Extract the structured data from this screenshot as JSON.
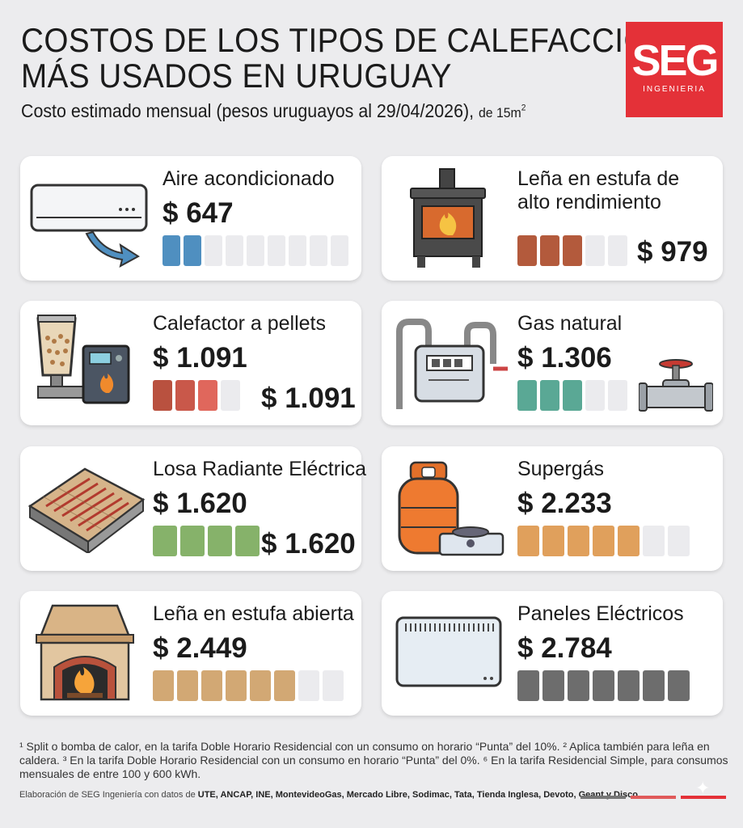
{
  "header": {
    "title_line1": "COSTOS DE LOS TIPOS DE CALEFACCIÓN",
    "title_line2": "MÁS USADOS EN URUGUAY",
    "subtitle_main": "Costo estimado mensual (pesos uruguayos al 29/04/2026),",
    "subtitle_small": "de 15m",
    "subtitle_sup": "2"
  },
  "logo": {
    "mark": "SEG",
    "sub": "INGENIERIA",
    "color": "#e43138"
  },
  "cards": [
    {
      "name": "Aire acondicionado",
      "price": "$ 647",
      "color": "#4f8fc0",
      "filled": 2,
      "total": 9,
      "icon": "air-conditioner-icon"
    },
    {
      "name_line1": "Leña en estufa de",
      "name_line2": "alto rendimiento",
      "price": "$ 979",
      "color": "#b35a3c",
      "filled": 3,
      "total": 6,
      "icon": "wood-stove-icon"
    },
    {
      "name": "Calefactor a pellets",
      "price": "$ 1.091",
      "price_repeat": "$ 1.091",
      "colors": [
        "#b9513f",
        "#c9584a",
        "#e0675c"
      ],
      "filled": 3,
      "total": 5,
      "icon": "pellet-heater-icon"
    },
    {
      "name": "Gas natural",
      "price": "$ 1.306",
      "color": "#5aa895",
      "filled": 3,
      "total": 5,
      "icon": "gas-meter-icon"
    },
    {
      "name": "Losa Radiante Eléctrica",
      "price": "$ 1.620",
      "price_repeat": "$ 1.620",
      "color": "#86b26a",
      "filled": 4,
      "total": 4,
      "icon": "radiant-floor-icon"
    },
    {
      "name": "Supergás",
      "price": "$ 2.233",
      "color": "#e0a05c",
      "filled": 5,
      "total": 8,
      "icon": "gas-cylinder-icon"
    },
    {
      "name": "Leña en estufa abierta",
      "price": "$ 2.449",
      "color": "#d2a874",
      "filled": 6,
      "total": 8,
      "icon": "fireplace-icon"
    },
    {
      "name": "Paneles Eléctricos",
      "price": "$ 2.784",
      "color": "#6d6d6d",
      "filled": 8,
      "total": 8,
      "icon": "electric-panel-icon"
    }
  ],
  "footnotes": {
    "text": "¹ Split o bomba de calor, en la tarifa Doble Horario Residencial con un consumo on horario “Punta” del 10%. ² Aplica también para leña en caldera. ³ En la tarifa Doble Horario Residencial con un consumo en horario “Punta” del 0%. ⁶ En la tarifa Residencial Simple, para consumos mensuales de entre 100 y 600 kWh.",
    "credit_prefix": "Elaboración de SEG Ingeniería con datos de",
    "credit_sources": "UTE, ANCAP, INE, MontevideoGas, Mercado Libre, Sodimac, Tata, Tienda Inglesa, Devoto, Geant y Disco."
  }
}
